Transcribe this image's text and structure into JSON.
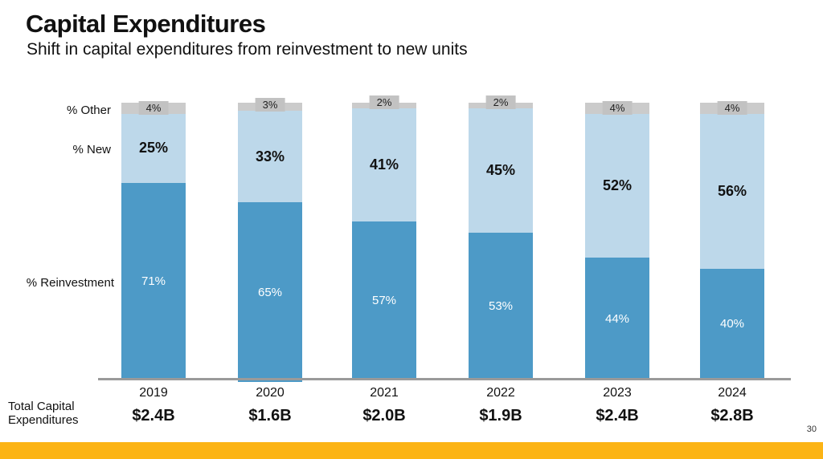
{
  "slide": {
    "title": "Capital Expenditures",
    "subtitle": "Shift in capital expenditures from reinvestment to new units",
    "page_number": "30"
  },
  "chart": {
    "row_labels": {
      "other": "% Other",
      "new": "% New",
      "reinvestment": "% Reinvestment"
    },
    "total_label_line1": "Total Capital",
    "total_label_line2": "Expenditures"
  },
  "chart_data": {
    "type": "bar",
    "subtype": "stacked-100-percent",
    "categories": [
      "2019",
      "2020",
      "2021",
      "2022",
      "2023",
      "2024"
    ],
    "series": [
      {
        "name": "% Reinvestment",
        "color": "#4d9ac7",
        "label_color": "#ffffff",
        "values": [
          71,
          65,
          57,
          53,
          44,
          40
        ]
      },
      {
        "name": "% New",
        "color": "#bdd8ea",
        "label_color": "#111111",
        "values": [
          25,
          33,
          41,
          45,
          52,
          56
        ]
      },
      {
        "name": "% Other",
        "color": "#cbcbcb",
        "label_color": "#222222",
        "values": [
          4,
          3,
          2,
          2,
          4,
          4
        ]
      }
    ],
    "totals": [
      "$2.4B",
      "$1.6B",
      "$2.0B",
      "$1.9B",
      "$2.4B",
      "$2.8B"
    ],
    "ylim": [
      0,
      100
    ],
    "grid": false,
    "value_suffix": "%",
    "legend_position": "left-row-labels"
  },
  "colors": {
    "reinvestment_blue": "#4d9ac7",
    "new_units_light_blue": "#bdd8ea",
    "other_gray": "#cbcbcb",
    "other_tag_gray": "#c2c2c2",
    "accent_bar_yellow": "#fcb415",
    "axis_gray": "#9a9a9a"
  }
}
